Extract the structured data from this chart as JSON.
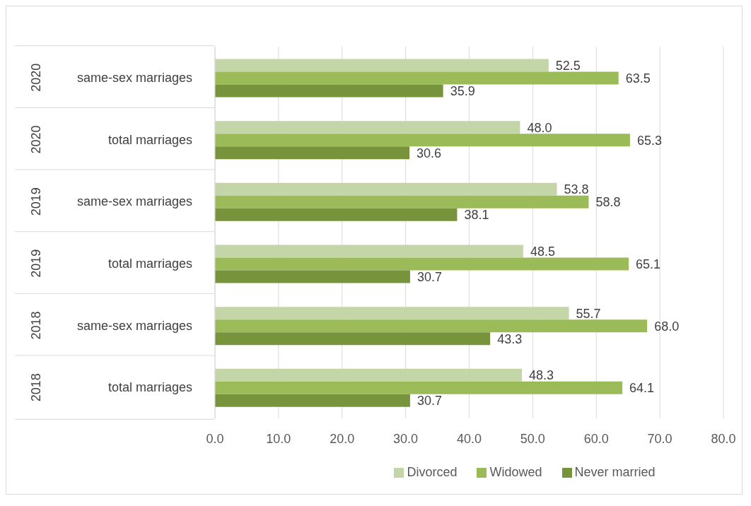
{
  "chart_data": {
    "type": "bar",
    "orientation": "horizontal",
    "categories": [
      "2020 same-sex marriages",
      "2020 total marriages",
      "2019 same-sex marriages",
      "2019 total marriages",
      "2018 same-sex marriages",
      "2018 total marriages"
    ],
    "series": [
      {
        "name": "Divorced",
        "color": "#c4d6a8",
        "values": [
          52.5,
          48.0,
          53.8,
          48.5,
          55.7,
          48.3
        ],
        "value_labels": [
          "52.5",
          "48.0",
          "53.8",
          "48.5",
          "55.7",
          "48.3"
        ]
      },
      {
        "name": "Widowed",
        "color": "#9bbb59",
        "values": [
          63.5,
          65.3,
          58.8,
          65.1,
          68.0,
          64.1
        ],
        "value_labels": [
          "63.5",
          "65.3",
          "58.8",
          "65.1",
          "68.0",
          "64.1"
        ]
      },
      {
        "name": "Never married",
        "color": "#77933c",
        "values": [
          35.9,
          30.6,
          38.1,
          30.7,
          43.3,
          30.7
        ],
        "value_labels": [
          "35.9",
          "30.6",
          "38.1",
          "30.7",
          "43.3",
          "30.7"
        ]
      }
    ],
    "xlim": [
      0,
      80
    ],
    "xticks": [
      {
        "value": 0,
        "label": "0.0"
      },
      {
        "value": 10,
        "label": "10.0"
      },
      {
        "value": 20,
        "label": "20.0"
      },
      {
        "value": 30,
        "label": "30.0"
      },
      {
        "value": 40,
        "label": "40.0"
      },
      {
        "value": 50,
        "label": "50.0"
      },
      {
        "value": 60,
        "label": "60.0"
      },
      {
        "value": 70,
        "label": "70.0"
      },
      {
        "value": 80,
        "label": "80.0"
      }
    ],
    "grid": "x",
    "legend": "bottom"
  }
}
